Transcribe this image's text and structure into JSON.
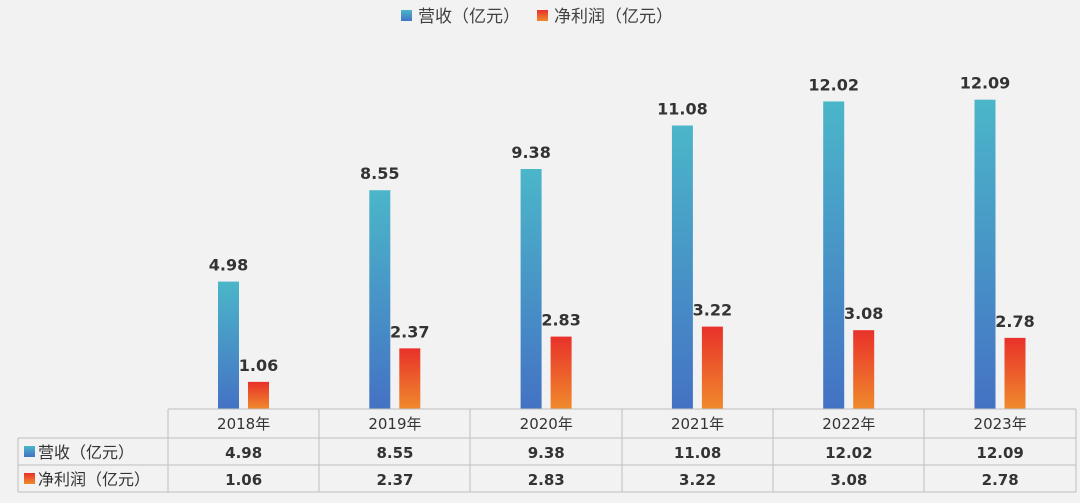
{
  "chart_data": {
    "type": "bar",
    "categories": [
      "2018年",
      "2019年",
      "2020年",
      "2021年",
      "2022年",
      "2023年"
    ],
    "series": [
      {
        "name": "营收（亿元）",
        "values": [
          4.98,
          8.55,
          9.38,
          11.08,
          12.02,
          12.09
        ],
        "labels": [
          "4.98",
          "8.55",
          "9.38",
          "11.08",
          "12.02",
          "12.09"
        ],
        "color_top": "#4bb6c9",
        "color_bottom": "#4472c4"
      },
      {
        "name": "净利润（亿元）",
        "values": [
          1.06,
          2.37,
          2.83,
          3.22,
          3.08,
          2.78
        ],
        "labels": [
          "1.06",
          "2.37",
          "2.83",
          "3.22",
          "3.08",
          "2.78"
        ],
        "color_top": "#e8312a",
        "color_bottom": "#f08a2c"
      }
    ],
    "title": "",
    "xlabel": "",
    "ylabel": "",
    "ylim": [
      0,
      14.5
    ],
    "legend": "top-center",
    "grid": false,
    "data_table": true
  }
}
